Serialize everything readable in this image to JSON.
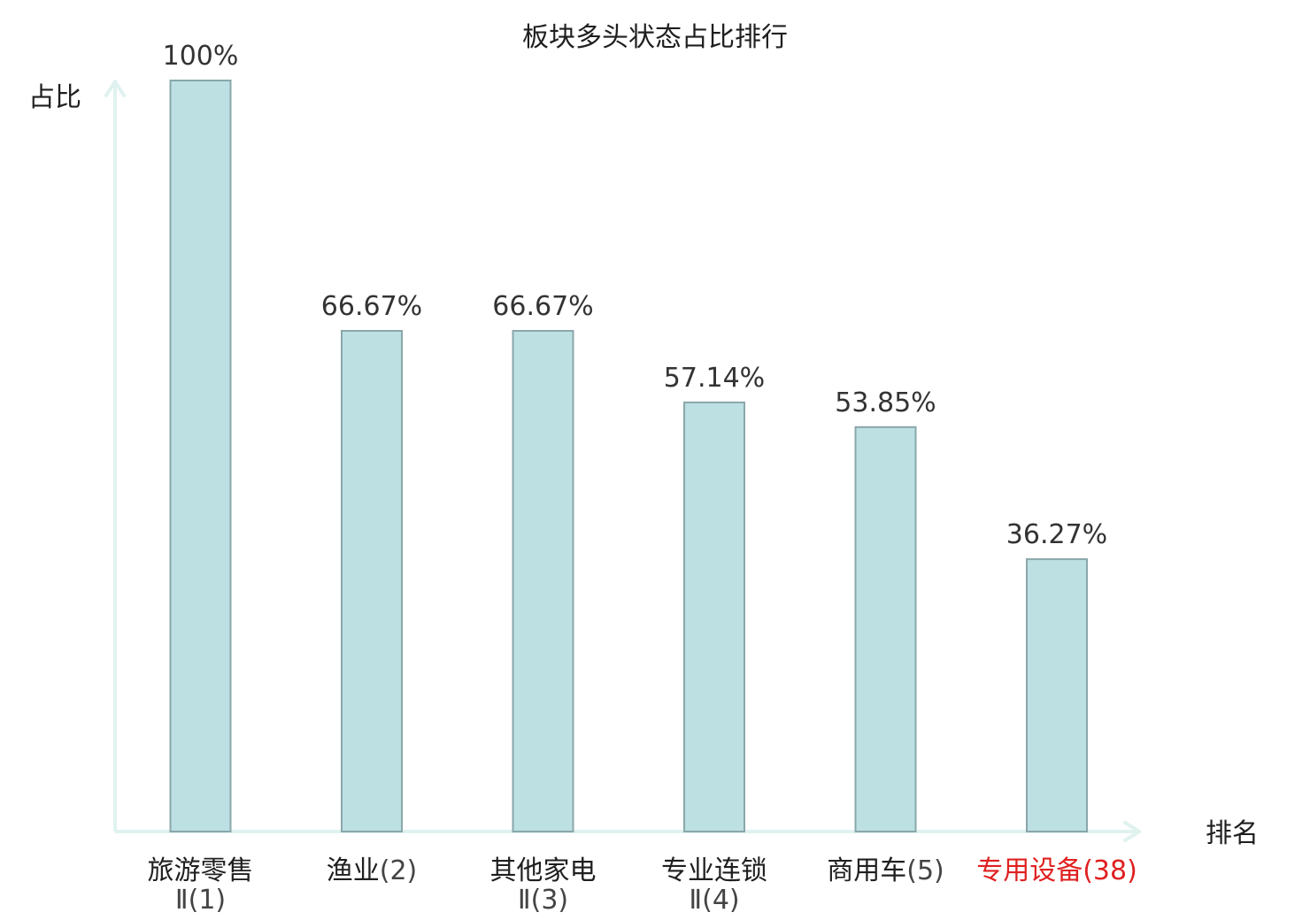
{
  "chart_data": {
    "type": "bar",
    "title": "板块多头状态占比排行",
    "ylabel": "占比",
    "xlabel": "排名",
    "ylim": [
      0,
      100
    ],
    "unit": "%",
    "bar_fill": "#bde0e3",
    "bar_stroke": "#8aa7aa",
    "axis_color": "#dff2ef",
    "name_color": "#1f1f1f",
    "rank_color": "#444444",
    "highlight_color": "#e02020",
    "categories": [
      {
        "lines": [
          "旅游零售",
          "Ⅱ(1)"
        ],
        "highlight": false
      },
      {
        "lines": [
          "渔业(2)"
        ],
        "highlight": false
      },
      {
        "lines": [
          "其他家电",
          "Ⅱ(3)"
        ],
        "highlight": false
      },
      {
        "lines": [
          "专业连锁",
          "Ⅱ(4)"
        ],
        "highlight": false
      },
      {
        "lines": [
          "商用车(5)"
        ],
        "highlight": false
      },
      {
        "lines": [
          "专用设备(38)"
        ],
        "highlight": true
      }
    ],
    "values": [
      100,
      66.67,
      66.67,
      57.14,
      53.85,
      36.27
    ],
    "value_labels": [
      "100%",
      "66.67%",
      "66.67%",
      "57.14%",
      "53.85%",
      "36.27%"
    ]
  }
}
